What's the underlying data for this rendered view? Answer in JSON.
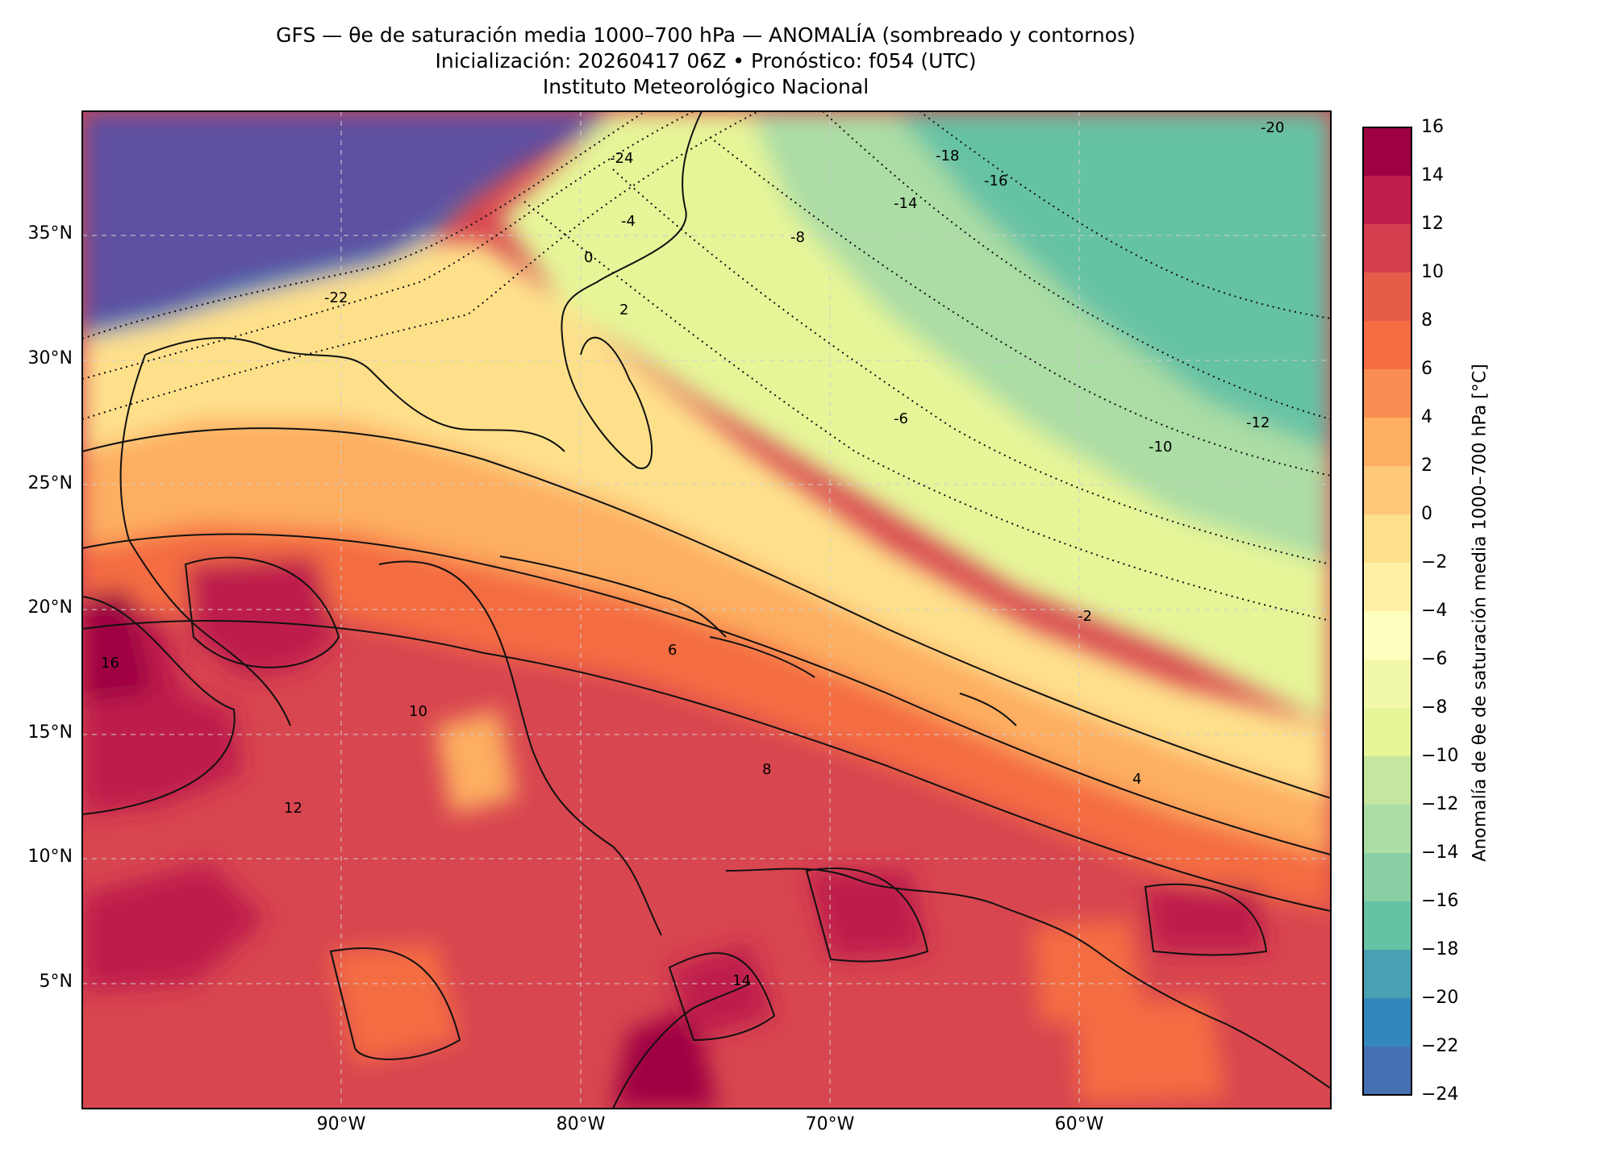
{
  "header": {
    "title_line1": "GFS — θe de saturación media 1000–700 hPa — ANOMALÍA (sombreado y contornos)",
    "title_line2": "Inicialización: 20260417 06Z   •   Pronóstico: f054 (UTC)",
    "title_line3": "Instituto Meteorológico Nacional"
  },
  "map": {
    "lat_ticks": [
      "35°N",
      "30°N",
      "25°N",
      "20°N",
      "15°N",
      "10°N",
      "5°N"
    ],
    "lon_ticks": [
      "90°W",
      "80°W",
      "70°W",
      "60°W"
    ],
    "grid": true,
    "coastlines": true,
    "colormap": "Spectral_r"
  },
  "colorbar": {
    "title": "Anomalía de θe de saturación media 1000–700 hPa [°C]",
    "ticks": [
      "16",
      "14",
      "12",
      "10",
      "8",
      "6",
      "4",
      "2",
      "0",
      "−2",
      "−4",
      "−6",
      "−8",
      "−10",
      "−12",
      "−14",
      "−16",
      "−18",
      "−20",
      "−22",
      "−24"
    ],
    "colors": [
      "#9e0142",
      "#be1f4c",
      "#d53e4f",
      "#e55c49",
      "#f46d43",
      "#f88e52",
      "#fdae61",
      "#fdc878",
      "#fee08b",
      "#fff0a6",
      "#ffffbf",
      "#f1f9a9",
      "#e6f598",
      "#c4e69f",
      "#abdda4",
      "#88cfa4",
      "#66c2a5",
      "#48a0b2",
      "#3288bd",
      "#4570b1",
      "#5e4fa2"
    ]
  },
  "contour_labels": {
    "north": [
      "-24",
      "-22",
      "-20",
      "-18",
      "-16",
      "-14",
      "-12",
      "-10",
      "-8",
      "-6",
      "-4",
      "-2",
      "0",
      "2",
      "4"
    ],
    "south": [
      "4",
      "6",
      "8",
      "10",
      "12",
      "14",
      "16"
    ]
  }
}
